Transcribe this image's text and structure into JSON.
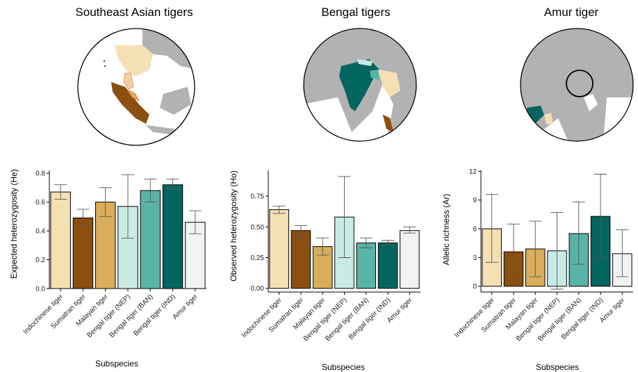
{
  "maps": [
    {
      "title": "Southeast Asian tigers"
    },
    {
      "title": "Bengal tigers"
    },
    {
      "title": "Amur tiger"
    }
  ],
  "colors": {
    "Indochinese tiger": "#f5e0b4",
    "Sumatran tiger": "#8b4f0f",
    "Malayan tiger": "#d9ad5c",
    "Bengal tiger (NEP)": "#c9ebe5",
    "Bengal tiger (BAN)": "#5ab3a7",
    "Bengal tiger (IND)": "#02665e",
    "Amur tiger": "#f2f2f2",
    "land": "#b2b2b2",
    "outline": "#e05a2b"
  },
  "chart_data": [
    {
      "type": "bar",
      "categories": [
        "Indochinese tiger",
        "Sumatran tiger",
        "Malayan tiger",
        "Bengal tiger (NEP)",
        "Bengal tiger (BAN)",
        "Bengal tiger (IND)",
        "Amur tiger"
      ],
      "values": [
        0.67,
        0.49,
        0.6,
        0.57,
        0.68,
        0.72,
        0.46
      ],
      "error_low": [
        0.62,
        0.44,
        0.5,
        0.35,
        0.6,
        0.69,
        0.38
      ],
      "error_high": [
        0.72,
        0.55,
        0.7,
        0.79,
        0.76,
        0.76,
        0.54
      ],
      "xlabel": "Subspecies",
      "ylabel": "Expected heterozygosity (He)",
      "ylim": [
        0,
        0.82
      ],
      "yticks": [
        0.0,
        0.2,
        0.4,
        0.6,
        0.8
      ],
      "ytick_labels": [
        "0.0",
        "0.2",
        "0.4",
        "0.6",
        "0.8"
      ]
    },
    {
      "type": "bar",
      "categories": [
        "Indochinese tiger",
        "Sumatran tiger",
        "Malayan tiger",
        "Bengal tiger (NEP)",
        "Bengal tiger (BAN)",
        "Bengal tiger (IND)",
        "Amur tiger"
      ],
      "values": [
        0.64,
        0.47,
        0.34,
        0.58,
        0.37,
        0.37,
        0.47
      ],
      "error_low": [
        0.61,
        0.43,
        0.27,
        0.25,
        0.33,
        0.35,
        0.45
      ],
      "error_high": [
        0.67,
        0.51,
        0.41,
        0.91,
        0.41,
        0.39,
        0.5
      ],
      "xlabel": "Subspecies",
      "ylabel": "Observed heterozygosity (Ho)",
      "ylim": [
        -0.03,
        0.96
      ],
      "yticks": [
        0.0,
        0.25,
        0.5,
        0.75
      ],
      "ytick_labels": [
        "0.00",
        "0.25",
        "0.50",
        "0.75"
      ]
    },
    {
      "type": "bar",
      "categories": [
        "Indochinese tiger",
        "Sumatran tiger",
        "Malayan tiger",
        "Bengal tiger (NEP)",
        "Bengal tiger (BAN)",
        "Bengal tiger (IND)",
        "Amur tiger"
      ],
      "values": [
        6.0,
        3.6,
        3.9,
        3.7,
        5.5,
        7.3,
        3.4
      ],
      "error_low": [
        2.5,
        0.7,
        1.0,
        -0.3,
        2.3,
        2.9,
        1.0
      ],
      "error_high": [
        9.6,
        6.5,
        6.8,
        7.7,
        8.8,
        11.7,
        5.9
      ],
      "xlabel": "Subspecies",
      "ylabel": "Allelic richness (Ar)",
      "ylim": [
        -0.6,
        12.1
      ],
      "yticks": [
        0,
        3,
        6,
        9,
        12
      ],
      "ytick_labels": [
        "0",
        "3",
        "6",
        "9",
        "12"
      ]
    }
  ]
}
